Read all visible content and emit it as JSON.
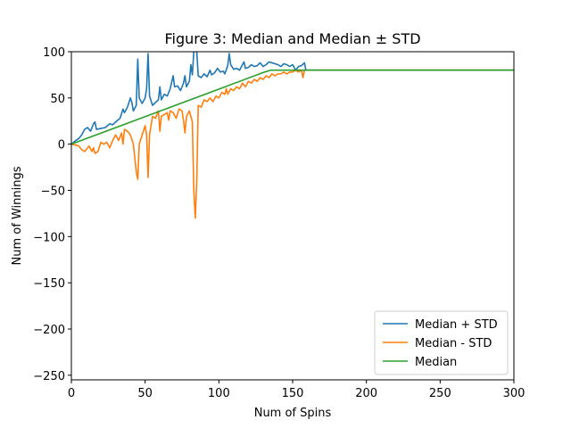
{
  "chart_data": {
    "type": "line",
    "title": "Figure 3: Median and Median ± STD",
    "xlabel": "Num of Spins",
    "ylabel": "Num of Winnings",
    "xlim": [
      0,
      300
    ],
    "ylim": [
      -255,
      100
    ],
    "xticks": [
      0,
      50,
      100,
      150,
      200,
      250,
      300
    ],
    "yticks": [
      100,
      50,
      0,
      -50,
      -100,
      -150,
      -200,
      -250
    ],
    "xtick_labels": [
      "0",
      "50",
      "100",
      "150",
      "200",
      "250",
      "300"
    ],
    "ytick_labels": [
      "100",
      "50",
      "0",
      "−50",
      "−100",
      "−150",
      "−200",
      "−250"
    ],
    "grid": false,
    "legend_position": "lower-right",
    "series": [
      {
        "name": "Median + STD",
        "color": "#1f77b4",
        "points": [
          [
            0,
            0
          ],
          [
            3,
            4
          ],
          [
            5,
            6
          ],
          [
            7,
            10
          ],
          [
            9,
            16
          ],
          [
            11,
            18
          ],
          [
            13,
            14
          ],
          [
            15,
            22
          ],
          [
            16,
            24
          ],
          [
            17,
            16
          ],
          [
            20,
            17
          ],
          [
            23,
            18
          ],
          [
            26,
            22
          ],
          [
            28,
            21
          ],
          [
            30,
            24
          ],
          [
            33,
            28
          ],
          [
            35,
            38
          ],
          [
            36,
            34
          ],
          [
            38,
            40
          ],
          [
            40,
            50
          ],
          [
            41,
            45
          ],
          [
            42,
            36
          ],
          [
            44,
            42
          ],
          [
            45,
            92
          ],
          [
            46,
            50
          ],
          [
            48,
            44
          ],
          [
            50,
            50
          ],
          [
            51,
            60
          ],
          [
            52,
            98
          ],
          [
            53,
            52
          ],
          [
            55,
            42
          ],
          [
            57,
            45
          ],
          [
            59,
            48
          ],
          [
            60,
            62
          ],
          [
            61,
            48
          ],
          [
            63,
            54
          ],
          [
            65,
            52
          ],
          [
            67,
            60
          ],
          [
            69,
            74
          ],
          [
            70,
            62
          ],
          [
            72,
            63
          ],
          [
            74,
            58
          ],
          [
            76,
            66
          ],
          [
            77,
            74
          ],
          [
            78,
            62
          ],
          [
            80,
            68
          ],
          [
            81,
            86
          ],
          [
            82,
            75
          ],
          [
            83,
            100
          ],
          [
            84,
            106
          ],
          [
            85,
            100
          ],
          [
            86,
            74
          ],
          [
            88,
            72
          ],
          [
            90,
            76
          ],
          [
            92,
            73
          ],
          [
            94,
            80
          ],
          [
            95,
            75
          ],
          [
            97,
            77
          ],
          [
            99,
            82
          ],
          [
            101,
            78
          ],
          [
            103,
            79
          ],
          [
            104,
            76
          ],
          [
            106,
            85
          ],
          [
            107,
            98
          ],
          [
            108,
            86
          ],
          [
            110,
            81
          ],
          [
            112,
            82
          ],
          [
            114,
            80
          ],
          [
            116,
            86
          ],
          [
            117,
            89
          ],
          [
            118,
            82
          ],
          [
            120,
            83
          ],
          [
            122,
            86
          ],
          [
            124,
            84
          ],
          [
            126,
            85
          ],
          [
            128,
            88
          ],
          [
            130,
            84
          ],
          [
            132,
            86
          ],
          [
            134,
            89
          ],
          [
            136,
            88
          ],
          [
            138,
            87
          ],
          [
            140,
            86
          ],
          [
            142,
            84
          ],
          [
            144,
            87
          ],
          [
            146,
            86
          ],
          [
            148,
            84
          ],
          [
            150,
            86
          ],
          [
            152,
            80
          ],
          [
            154,
            84
          ],
          [
            156,
            85
          ],
          [
            158,
            88
          ],
          [
            159,
            80
          ],
          [
            161,
            80
          ],
          [
            200,
            80
          ],
          [
            250,
            80
          ],
          [
            300,
            80
          ]
        ]
      },
      {
        "name": "Median - STD",
        "color": "#ff7f0e",
        "points": [
          [
            0,
            0
          ],
          [
            3,
            -1
          ],
          [
            5,
            -2
          ],
          [
            7,
            -6
          ],
          [
            9,
            -8
          ],
          [
            10,
            -6
          ],
          [
            12,
            -2
          ],
          [
            14,
            -8
          ],
          [
            15,
            -4
          ],
          [
            16,
            -10
          ],
          [
            18,
            -8
          ],
          [
            20,
            2
          ],
          [
            22,
            0
          ],
          [
            24,
            2
          ],
          [
            26,
            -4
          ],
          [
            28,
            4
          ],
          [
            30,
            10
          ],
          [
            32,
            4
          ],
          [
            34,
            12
          ],
          [
            35,
            0
          ],
          [
            36,
            16
          ],
          [
            38,
            14
          ],
          [
            40,
            10
          ],
          [
            42,
            0
          ],
          [
            44,
            -30
          ],
          [
            45,
            -38
          ],
          [
            46,
            0
          ],
          [
            48,
            10
          ],
          [
            50,
            20
          ],
          [
            51,
            10
          ],
          [
            52,
            -36
          ],
          [
            53,
            10
          ],
          [
            55,
            30
          ],
          [
            57,
            28
          ],
          [
            59,
            36
          ],
          [
            60,
            14
          ],
          [
            61,
            30
          ],
          [
            63,
            32
          ],
          [
            65,
            34
          ],
          [
            66,
            26
          ],
          [
            67,
            36
          ],
          [
            69,
            34
          ],
          [
            71,
            28
          ],
          [
            73,
            38
          ],
          [
            75,
            36
          ],
          [
            76,
            26
          ],
          [
            77,
            12
          ],
          [
            78,
            30
          ],
          [
            80,
            36
          ],
          [
            82,
            24
          ],
          [
            83,
            -50
          ],
          [
            84,
            -80
          ],
          [
            85,
            -40
          ],
          [
            86,
            42
          ],
          [
            88,
            40
          ],
          [
            90,
            48
          ],
          [
            92,
            46
          ],
          [
            94,
            50
          ],
          [
            96,
            46
          ],
          [
            98,
            52
          ],
          [
            100,
            50
          ],
          [
            102,
            56
          ],
          [
            104,
            54
          ],
          [
            105,
            60
          ],
          [
            106,
            54
          ],
          [
            108,
            60
          ],
          [
            110,
            58
          ],
          [
            112,
            62
          ],
          [
            114,
            60
          ],
          [
            116,
            66
          ],
          [
            118,
            62
          ],
          [
            120,
            68
          ],
          [
            122,
            66
          ],
          [
            124,
            70
          ],
          [
            126,
            68
          ],
          [
            128,
            72
          ],
          [
            130,
            70
          ],
          [
            132,
            74
          ],
          [
            134,
            72
          ],
          [
            136,
            76
          ],
          [
            138,
            74
          ],
          [
            140,
            76
          ],
          [
            142,
            76
          ],
          [
            144,
            78
          ],
          [
            146,
            76
          ],
          [
            148,
            78
          ],
          [
            150,
            78
          ],
          [
            152,
            80
          ],
          [
            154,
            78
          ],
          [
            156,
            80
          ],
          [
            157,
            72
          ],
          [
            158,
            80
          ],
          [
            161,
            80
          ],
          [
            200,
            80
          ],
          [
            250,
            80
          ],
          [
            300,
            80
          ]
        ]
      },
      {
        "name": "Median",
        "color": "#2ca02c",
        "points": [
          [
            0,
            0
          ],
          [
            131,
            78
          ],
          [
            135,
            80
          ],
          [
            300,
            80
          ]
        ]
      }
    ]
  }
}
